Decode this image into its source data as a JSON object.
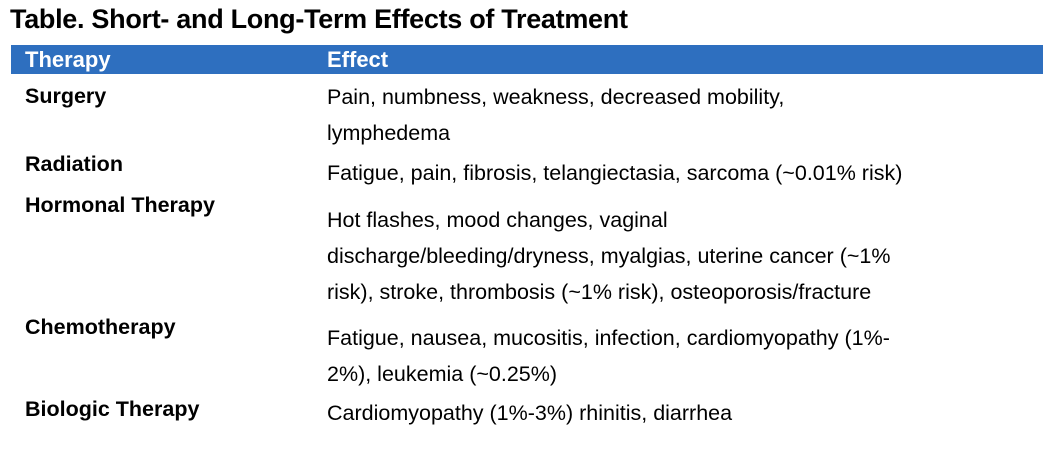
{
  "table": {
    "title": "Table. Short- and Long-Term Effects of Treatment",
    "header": {
      "therapy": "Therapy",
      "effect": "Effect"
    },
    "rows": [
      {
        "therapy": "Surgery",
        "effect_lines": [
          "Pain, numbness, weakness, decreased mobility,",
          "lymphedema"
        ]
      },
      {
        "therapy": "Radiation",
        "effect_lines": [
          "Fatigue, pain, fibrosis, telangiectasia, sarcoma (~0.01% risk)"
        ]
      },
      {
        "therapy": "Hormonal Therapy",
        "effect_lines": [
          "Hot flashes, mood changes, vaginal",
          "discharge/bleeding/dryness, myalgias, uterine cancer (~1%",
          "risk), stroke, thrombosis (~1% risk), osteoporosis/fracture"
        ]
      },
      {
        "therapy": "Chemotherapy",
        "effect_lines": [
          "Fatigue, nausea, mucositis, infection, cardiomyopathy (1%-",
          "2%), leukemia (~0.25%)"
        ]
      },
      {
        "therapy": "Biologic Therapy",
        "effect_lines": [
          "Cardiomyopathy (1%-3%) rhinitis, diarrhea"
        ]
      }
    ]
  },
  "colors": {
    "header_background": "#2e6fbf",
    "header_text": "#ffffff",
    "body_text": "#000000"
  }
}
